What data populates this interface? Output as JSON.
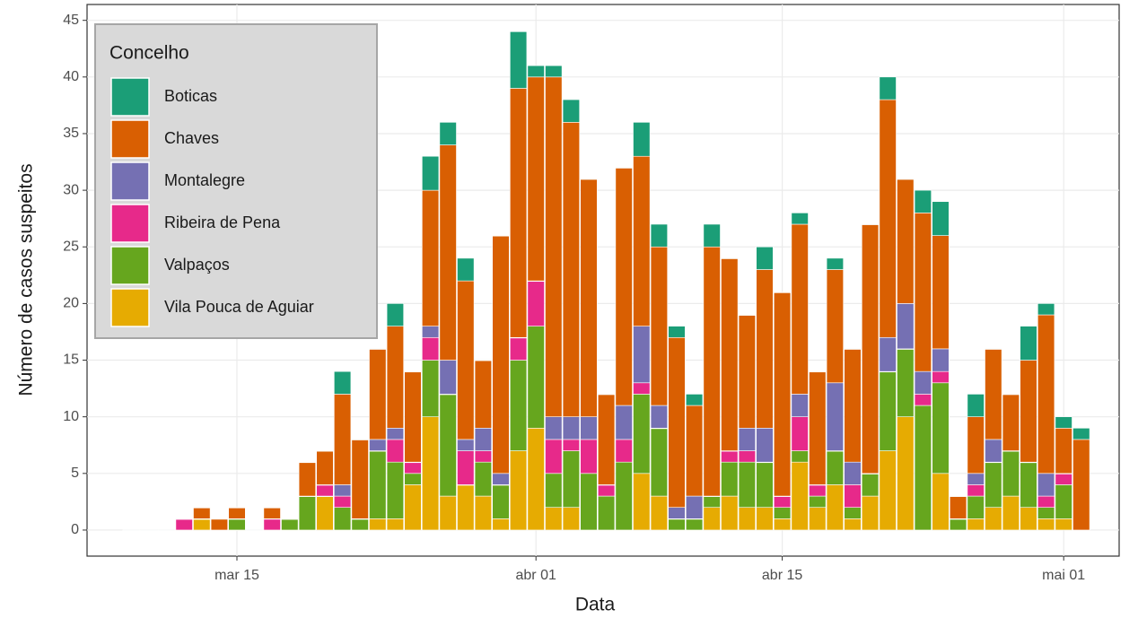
{
  "chart_data": {
    "type": "stacked_bar",
    "x_label": "Data",
    "y_label": "Número de casos suspeitos",
    "legend_title": "Concelho",
    "categories": [
      "mar 09",
      "mar 10",
      "mar 11",
      "mar 12",
      "mar 13",
      "mar 14",
      "mar 15",
      "mar 16",
      "mar 17",
      "mar 18",
      "mar 19",
      "mar 20",
      "mar 21",
      "mar 22",
      "mar 23",
      "mar 24",
      "mar 25",
      "mar 26",
      "mar 27",
      "mar 28",
      "mar 29",
      "mar 30",
      "mar 31",
      "abr 01",
      "abr 02",
      "abr 03",
      "abr 04",
      "abr 05",
      "abr 06",
      "abr 07",
      "abr 08",
      "abr 09",
      "abr 10",
      "abr 11",
      "abr 12",
      "abr 13",
      "abr 14",
      "abr 15",
      "abr 16",
      "abr 17",
      "abr 18",
      "abr 19",
      "abr 20",
      "abr 21",
      "abr 22",
      "abr 23",
      "abr 24",
      "abr 25",
      "abr 26",
      "abr 27",
      "abr 28",
      "abr 29",
      "abr 30",
      "mai 01",
      "mai 02"
    ],
    "series": [
      {
        "name": "Boticas",
        "color": "#1b9e77",
        "values": [
          0,
          0,
          0,
          0,
          0,
          0,
          0,
          0,
          0,
          0,
          0,
          0,
          2,
          0,
          0,
          2,
          0,
          3,
          2,
          2,
          0,
          0,
          5,
          1,
          1,
          2,
          0,
          0,
          0,
          3,
          2,
          1,
          1,
          2,
          0,
          0,
          2,
          0,
          1,
          0,
          1,
          0,
          0,
          2,
          0,
          2,
          3,
          0,
          2,
          0,
          0,
          3,
          1,
          1,
          1
        ]
      },
      {
        "name": "Chaves",
        "color": "#d95f02",
        "values": [
          0,
          0,
          0,
          0,
          1,
          1,
          1,
          0,
          1,
          0,
          3,
          3,
          8,
          7,
          8,
          9,
          8,
          12,
          19,
          14,
          6,
          21,
          22,
          18,
          30,
          26,
          21,
          8,
          21,
          15,
          14,
          15,
          8,
          22,
          17,
          10,
          14,
          18,
          15,
          10,
          10,
          10,
          22,
          21,
          11,
          14,
          10,
          2,
          5,
          8,
          5,
          9,
          14,
          4,
          8
        ]
      },
      {
        "name": "Montalegre",
        "color": "#7570b3",
        "values": [
          0,
          0,
          0,
          0,
          0,
          0,
          0,
          0,
          0,
          0,
          0,
          0,
          1,
          0,
          1,
          1,
          0,
          1,
          3,
          1,
          2,
          1,
          0,
          0,
          2,
          2,
          2,
          0,
          3,
          5,
          2,
          1,
          2,
          0,
          0,
          2,
          3,
          0,
          2,
          0,
          6,
          2,
          0,
          3,
          4,
          2,
          2,
          0,
          1,
          2,
          0,
          0,
          2,
          0,
          0
        ]
      },
      {
        "name": "Ribeira de Pena",
        "color": "#e7298a",
        "values": [
          0,
          0,
          0,
          1,
          0,
          0,
          0,
          0,
          1,
          0,
          0,
          1,
          1,
          0,
          0,
          2,
          1,
          2,
          0,
          3,
          1,
          0,
          2,
          4,
          3,
          1,
          3,
          1,
          2,
          1,
          0,
          0,
          0,
          0,
          1,
          1,
          0,
          1,
          3,
          1,
          0,
          2,
          0,
          0,
          0,
          1,
          1,
          0,
          1,
          0,
          0,
          0,
          1,
          1,
          0
        ]
      },
      {
        "name": "Valpaços",
        "color": "#66a61e",
        "values": [
          0,
          0,
          0,
          0,
          0,
          0,
          1,
          0,
          0,
          1,
          3,
          0,
          2,
          1,
          6,
          5,
          1,
          5,
          9,
          0,
          3,
          3,
          8,
          9,
          3,
          5,
          5,
          3,
          6,
          7,
          6,
          1,
          1,
          1,
          3,
          4,
          4,
          1,
          1,
          1,
          3,
          1,
          2,
          7,
          6,
          11,
          8,
          1,
          2,
          4,
          4,
          4,
          1,
          3,
          0
        ]
      },
      {
        "name": "Vila Pouca de Aguiar",
        "color": "#e6ab02",
        "values": [
          0,
          0,
          0,
          0,
          1,
          0,
          0,
          0,
          0,
          0,
          0,
          3,
          0,
          0,
          1,
          1,
          4,
          10,
          3,
          4,
          3,
          1,
          7,
          9,
          2,
          2,
          0,
          0,
          0,
          5,
          3,
          0,
          0,
          2,
          3,
          2,
          2,
          1,
          6,
          2,
          4,
          1,
          3,
          7,
          10,
          0,
          5,
          0,
          1,
          2,
          3,
          2,
          1,
          1,
          0
        ]
      }
    ],
    "ylim": [
      -2.3,
      46.4
    ],
    "yticks": [
      0,
      5,
      10,
      15,
      20,
      25,
      30,
      35,
      40,
      45
    ],
    "xticks": [
      "mar 15",
      "abr 01",
      "abr 15",
      "mai 01"
    ],
    "grid": true
  }
}
